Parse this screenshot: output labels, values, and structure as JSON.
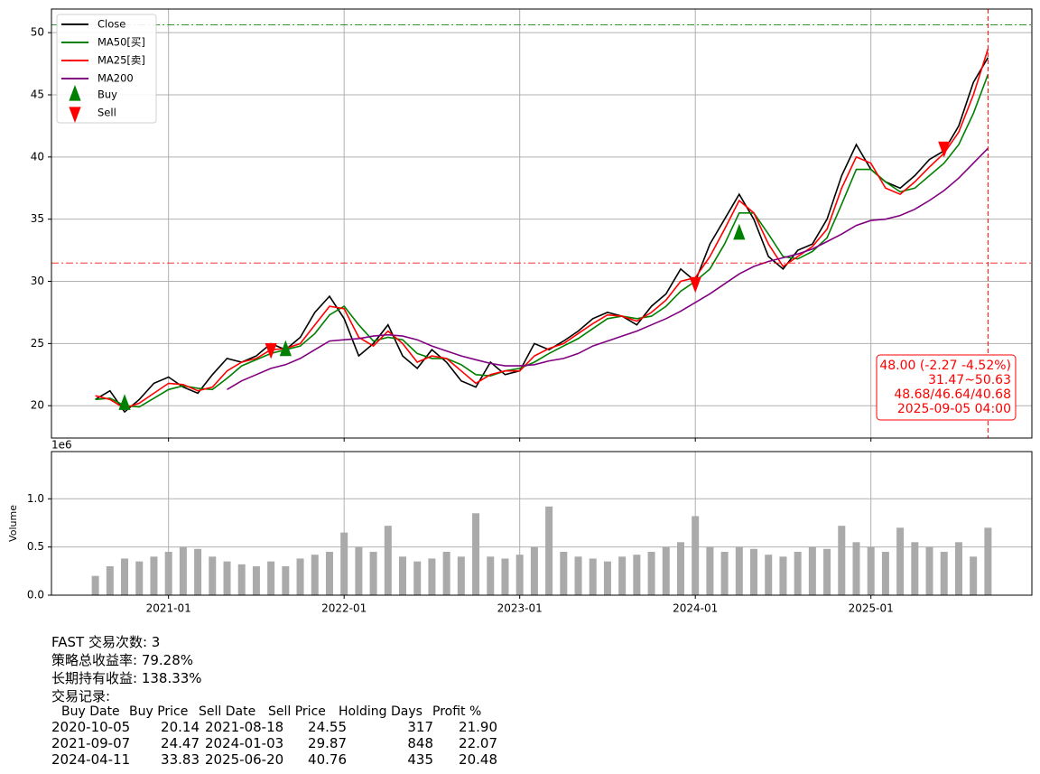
{
  "chart_data": [
    {
      "type": "line",
      "x": [
        "2020-08",
        "2020-09",
        "2020-10",
        "2020-11",
        "2020-12",
        "2021-01",
        "2021-02",
        "2021-03",
        "2021-04",
        "2021-05",
        "2021-06",
        "2021-07",
        "2021-08",
        "2021-09",
        "2021-10",
        "2021-11",
        "2021-12",
        "2022-01",
        "2022-02",
        "2022-03",
        "2022-04",
        "2022-05",
        "2022-06",
        "2022-07",
        "2022-08",
        "2022-09",
        "2022-10",
        "2022-11",
        "2022-12",
        "2023-01",
        "2023-02",
        "2023-03",
        "2023-04",
        "2023-05",
        "2023-06",
        "2023-07",
        "2023-08",
        "2023-09",
        "2023-10",
        "2023-11",
        "2023-12",
        "2024-01",
        "2024-02",
        "2024-03",
        "2024-04",
        "2024-05",
        "2024-06",
        "2024-07",
        "2024-08",
        "2024-09",
        "2024-10",
        "2024-11",
        "2024-12",
        "2025-01",
        "2025-02",
        "2025-03",
        "2025-04",
        "2025-05",
        "2025-06",
        "2025-07",
        "2025-08",
        "2025-09"
      ],
      "xlim": [
        "2020-05",
        "2025-12"
      ],
      "xticks": [
        "2021-01",
        "2022-01",
        "2023-01",
        "2024-01",
        "2025-01"
      ],
      "ylim": [
        17.4,
        51.9
      ],
      "yticks": [
        20,
        25,
        30,
        35,
        40,
        45,
        50
      ],
      "grid": true,
      "legend": "upper left",
      "series": [
        {
          "name": "Close",
          "color": "#000000",
          "values": [
            20.5,
            21.2,
            19.5,
            20.5,
            21.8,
            22.3,
            21.5,
            21.0,
            22.5,
            23.8,
            23.5,
            24.0,
            25.0,
            24.5,
            25.5,
            27.5,
            28.8,
            27.0,
            24.0,
            25.0,
            26.5,
            24.0,
            23.0,
            24.5,
            23.5,
            22.0,
            21.5,
            23.5,
            22.5,
            22.8,
            25.0,
            24.5,
            25.2,
            26.0,
            27.0,
            27.5,
            27.2,
            26.5,
            28.0,
            29.0,
            31.0,
            30.0,
            33.0,
            35.0,
            37.0,
            35.0,
            32.0,
            31.0,
            32.5,
            33.0,
            35.0,
            38.5,
            41.0,
            39.0,
            38.0,
            37.5,
            38.5,
            39.8,
            40.5,
            42.5,
            46.0,
            48.0
          ]
        },
        {
          "name": "MA50[买]",
          "color": "#008000",
          "values": [
            20.5,
            20.6,
            20.0,
            19.9,
            20.6,
            21.3,
            21.6,
            21.4,
            21.3,
            22.2,
            23.2,
            23.7,
            24.2,
            24.5,
            24.8,
            25.8,
            27.3,
            28.0,
            26.5,
            25.2,
            25.5,
            25.3,
            24.2,
            23.8,
            23.8,
            23.3,
            22.5,
            22.4,
            22.8,
            23.0,
            23.5,
            24.2,
            24.8,
            25.4,
            26.2,
            27.0,
            27.2,
            27.0,
            27.2,
            28.0,
            29.2,
            30.0,
            31.0,
            33.0,
            35.5,
            35.5,
            33.8,
            32.0,
            31.8,
            32.4,
            33.5,
            36.2,
            39.0,
            39.0,
            38.0,
            37.2,
            37.5,
            38.5,
            39.5,
            41.0,
            43.5,
            46.64
          ]
        },
        {
          "name": "MA25[卖]",
          "color": "#ff0000",
          "values": [
            20.8,
            20.5,
            19.8,
            20.2,
            21.0,
            21.8,
            21.7,
            21.2,
            21.5,
            22.8,
            23.5,
            23.8,
            24.5,
            24.6,
            25.0,
            26.5,
            28.0,
            27.8,
            25.5,
            24.8,
            26.0,
            25.0,
            23.5,
            24.0,
            23.8,
            22.8,
            21.8,
            22.5,
            22.8,
            22.8,
            24.0,
            24.6,
            25.0,
            25.8,
            26.6,
            27.3,
            27.2,
            26.8,
            27.5,
            28.5,
            30.0,
            30.3,
            32.0,
            34.2,
            36.5,
            35.5,
            33.0,
            31.2,
            32.0,
            32.8,
            34.2,
            37.5,
            40.0,
            39.5,
            37.5,
            37.0,
            38.0,
            39.2,
            40.3,
            42.0,
            45.0,
            48.68
          ]
        },
        {
          "name": "MA200",
          "color": "#800080",
          "values": [
            null,
            null,
            null,
            null,
            null,
            null,
            null,
            null,
            null,
            21.3,
            22.0,
            22.5,
            23.0,
            23.3,
            23.8,
            24.5,
            25.2,
            25.3,
            25.4,
            25.6,
            25.7,
            25.6,
            25.3,
            24.8,
            24.4,
            24.0,
            23.7,
            23.4,
            23.2,
            23.2,
            23.3,
            23.6,
            23.8,
            24.2,
            24.8,
            25.2,
            25.6,
            26.0,
            26.5,
            27.0,
            27.6,
            28.3,
            29.0,
            29.8,
            30.6,
            31.2,
            31.6,
            31.9,
            32.2,
            32.6,
            33.2,
            33.8,
            34.5,
            34.9,
            35.0,
            35.3,
            35.8,
            36.5,
            37.3,
            38.3,
            39.5,
            40.7
          ]
        }
      ],
      "markers": [
        {
          "name": "Buy",
          "color": "#008000",
          "shape": "up",
          "x": [
            "2020-10",
            "2021-09",
            "2024-04"
          ],
          "values": [
            20.14,
            24.47,
            33.83
          ]
        },
        {
          "name": "Sell",
          "color": "#ff0000",
          "shape": "down",
          "x": [
            "2021-08",
            "2024-01",
            "2025-06"
          ],
          "values": [
            24.55,
            29.87,
            40.76
          ]
        }
      ],
      "hlines": [
        {
          "value": 50.63,
          "color": "#008000"
        },
        {
          "value": 31.47,
          "color": "#ff0000"
        }
      ],
      "vline": {
        "x": "2025-09",
        "color": "#ff0000"
      },
      "annotation": {
        "color": "#ff0000",
        "lines": [
          "48.00 (-2.27 -4.52%)",
          "31.47~50.63",
          "48.68/46.64/40.68",
          "2025-09-05 04:00"
        ]
      }
    },
    {
      "type": "bar",
      "ylabel": "Volume",
      "offset_label": "1e6",
      "color": "#aaaaaa",
      "grid": true,
      "x": [
        "2020-08",
        "2020-09",
        "2020-10",
        "2020-11",
        "2020-12",
        "2021-01",
        "2021-02",
        "2021-03",
        "2021-04",
        "2021-05",
        "2021-06",
        "2021-07",
        "2021-08",
        "2021-09",
        "2021-10",
        "2021-11",
        "2021-12",
        "2022-01",
        "2022-02",
        "2022-03",
        "2022-04",
        "2022-05",
        "2022-06",
        "2022-07",
        "2022-08",
        "2022-09",
        "2022-10",
        "2022-11",
        "2022-12",
        "2023-01",
        "2023-02",
        "2023-03",
        "2023-04",
        "2023-05",
        "2023-06",
        "2023-07",
        "2023-08",
        "2023-09",
        "2023-10",
        "2023-11",
        "2023-12",
        "2024-01",
        "2024-02",
        "2024-03",
        "2024-04",
        "2024-05",
        "2024-06",
        "2024-07",
        "2024-08",
        "2024-09",
        "2024-10",
        "2024-11",
        "2024-12",
        "2025-01",
        "2025-02",
        "2025-03",
        "2025-04",
        "2025-05",
        "2025-06",
        "2025-07",
        "2025-08",
        "2025-09"
      ],
      "values": [
        0.2,
        0.3,
        0.38,
        0.35,
        0.4,
        0.45,
        0.5,
        0.48,
        0.4,
        0.35,
        0.32,
        0.3,
        0.35,
        0.3,
        0.38,
        0.42,
        0.45,
        0.65,
        0.5,
        0.45,
        0.72,
        0.4,
        0.35,
        0.38,
        0.45,
        0.4,
        0.85,
        0.4,
        0.38,
        0.42,
        0.5,
        0.92,
        0.45,
        0.4,
        0.38,
        0.35,
        0.4,
        0.42,
        0.45,
        0.5,
        0.55,
        0.82,
        0.5,
        0.45,
        0.5,
        0.48,
        0.42,
        0.4,
        0.45,
        0.5,
        0.48,
        0.72,
        0.55,
        0.5,
        0.45,
        0.7,
        0.55,
        0.5,
        0.45,
        0.55,
        0.4,
        0.7
      ],
      "xlim": [
        "2020-05",
        "2025-12"
      ],
      "xticks": [
        "2021-01",
        "2022-01",
        "2023-01",
        "2024-01",
        "2025-01"
      ],
      "ylim": [
        0,
        1.49
      ],
      "yticks": [
        {
          "value": 0,
          "label": "0.0"
        },
        {
          "value": 0.5,
          "label": "0.5"
        },
        {
          "value": 1,
          "label": "1.0"
        }
      ]
    }
  ],
  "report": {
    "summary": [
      "FAST 交易次数: 3",
      "策略总收益率: 79.28%",
      "长期持有收益: 138.33%",
      "交易记录:"
    ],
    "table": {
      "columns": [
        "Buy Date",
        "Buy Price",
        "Sell Date",
        "Sell Price",
        "Holding Days",
        "Profit %"
      ],
      "rows": [
        [
          "2020-10-05",
          "20.14",
          "2021-08-18",
          "24.55",
          "317",
          "21.90"
        ],
        [
          "2021-09-07",
          "24.47",
          "2024-01-03",
          "29.87",
          "848",
          "22.07"
        ],
        [
          "2024-04-11",
          "33.83",
          "2025-06-20",
          "40.76",
          "435",
          "20.48"
        ]
      ]
    }
  }
}
